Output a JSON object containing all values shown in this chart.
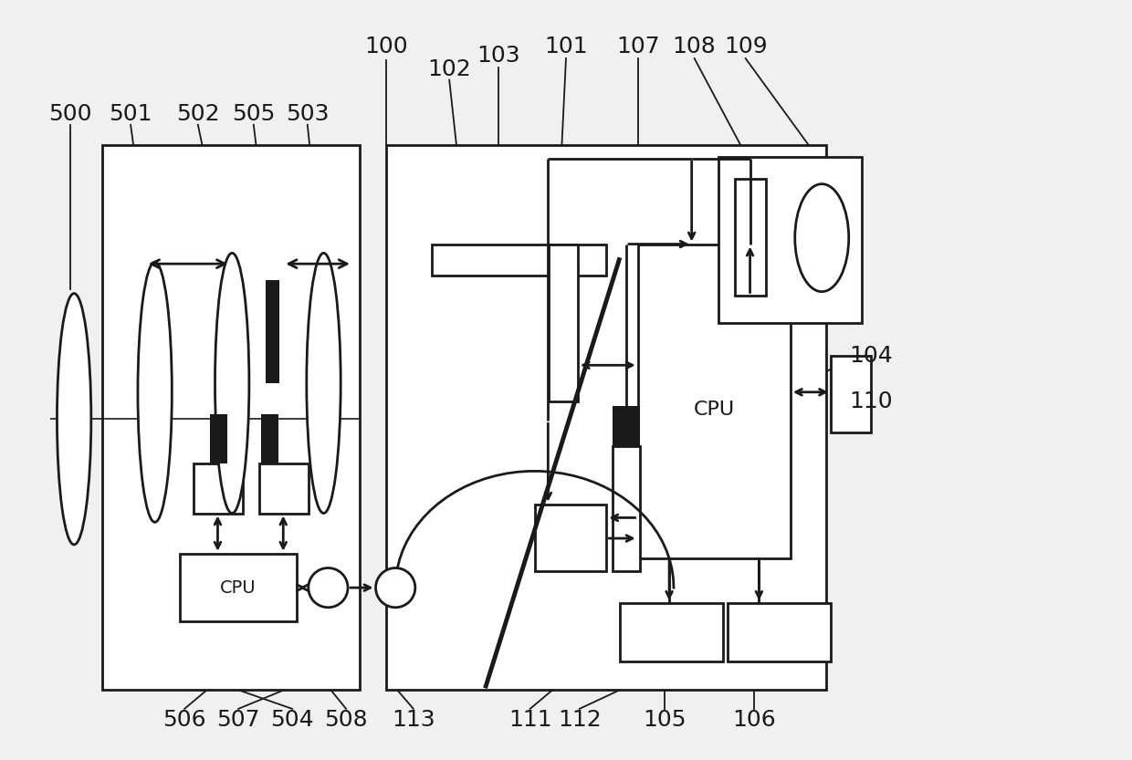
{
  "bg_color": "#f0f0f0",
  "line_color": "#1a1a1a",
  "lw": 2.0,
  "fig_w": 12.4,
  "fig_h": 8.33,
  "dpi": 100
}
